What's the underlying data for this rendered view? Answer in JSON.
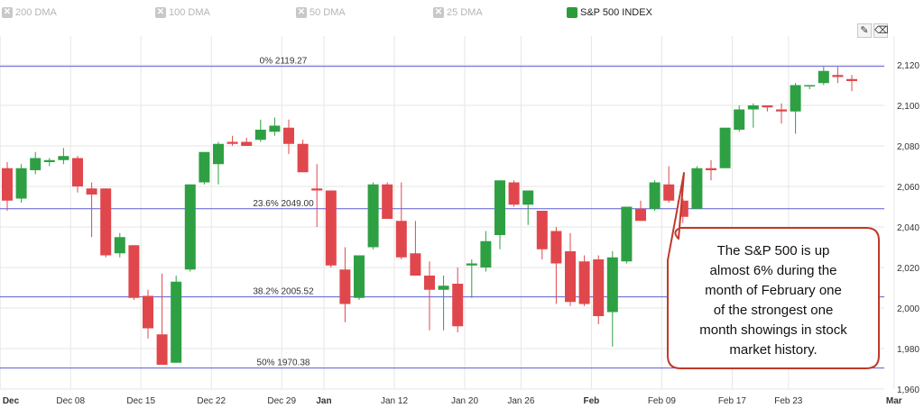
{
  "legend": [
    {
      "label": "200 DMA",
      "active": false
    },
    {
      "label": "100 DMA",
      "active": false
    },
    {
      "label": "50 DMA",
      "active": false
    },
    {
      "label": "25 DMA",
      "active": false
    },
    {
      "label": "S&P 500 INDEX",
      "active": true
    }
  ],
  "toolbar": {
    "pencil_icon": "pencil-icon",
    "eraser_icon": "eraser-icon"
  },
  "colors": {
    "up": "#2ea043",
    "down": "#e0474c",
    "fib_line": "#5b5bd6",
    "grid": "#e6e6e6",
    "callout_border": "#c0392b"
  },
  "annotation": {
    "lines": [
      "The S&P 500 is up",
      "almost 6% during the",
      "month of February one",
      "of the strongest one",
      "month showings in stock",
      "market history."
    ]
  },
  "chart_data": {
    "type": "candlestick",
    "y_axis": {
      "position": "right",
      "ylim": [
        1960,
        2128
      ],
      "ticks": [
        1960,
        1980,
        2000,
        2020,
        2040,
        2060,
        2080,
        2100,
        2120
      ],
      "tick_labels": [
        "1,960",
        "1,980",
        "2,000",
        "2,020",
        "2,040",
        "2,060",
        "2,080",
        "2,100",
        "2,120"
      ]
    },
    "x_axis": {
      "labels": [
        {
          "text": "Dec",
          "index": -0.5,
          "bold": true
        },
        {
          "text": "Dec 08",
          "index": 4.5,
          "bold": false
        },
        {
          "text": "Dec 15",
          "index": 9.5,
          "bold": false
        },
        {
          "text": "Dec 22",
          "index": 14.5,
          "bold": false
        },
        {
          "text": "Dec 29",
          "index": 19.5,
          "bold": false
        },
        {
          "text": "Jan",
          "index": 22.5,
          "bold": true
        },
        {
          "text": "Jan 12",
          "index": 27.5,
          "bold": false
        },
        {
          "text": "Jan 20",
          "index": 32.5,
          "bold": false
        },
        {
          "text": "Jan 26",
          "index": 36.5,
          "bold": false
        },
        {
          "text": "Feb",
          "index": 41.5,
          "bold": true
        },
        {
          "text": "Feb 09",
          "index": 46.5,
          "bold": false
        },
        {
          "text": "Feb 17",
          "index": 51.5,
          "bold": false
        },
        {
          "text": "Feb 23",
          "index": 55.5,
          "bold": false
        },
        {
          "text": "Mar",
          "index": 63.0,
          "bold": true
        }
      ],
      "max_index": 64
    },
    "fib_levels": [
      {
        "label": "0% 2119.27",
        "value": 2119.27
      },
      {
        "label": "23.6% 2049.00",
        "value": 2049.0
      },
      {
        "label": "38.2% 2005.52",
        "value": 2005.52
      },
      {
        "label": "50% 1970.38",
        "value": 1970.38
      }
    ],
    "series": [
      {
        "name": "S&P 500 INDEX",
        "candles": [
          [
            2069,
            2072,
            2048,
            2053
          ],
          [
            2054,
            2071,
            2052,
            2069
          ],
          [
            2068,
            2077,
            2066,
            2074
          ],
          [
            2072,
            2074,
            2070,
            2073
          ],
          [
            2073,
            2079,
            2071,
            2075
          ],
          [
            2074,
            2075,
            2057,
            2060
          ],
          [
            2059,
            2062,
            2035,
            2056
          ],
          [
            2059,
            2059,
            2025,
            2026
          ],
          [
            2027,
            2037,
            2025,
            2035
          ],
          [
            2031,
            2031,
            2004,
            2005
          ],
          [
            2006,
            2009,
            1985,
            1990
          ],
          [
            1987,
            2017,
            1972,
            1972
          ],
          [
            1973,
            2016,
            1973,
            2013
          ],
          [
            2019,
            2061,
            2018,
            2061
          ],
          [
            2062,
            2077,
            2061,
            2077
          ],
          [
            2071,
            2082,
            2061,
            2081
          ],
          [
            2082,
            2085,
            2080,
            2081
          ],
          [
            2082,
            2084,
            2080,
            2080
          ],
          [
            2083,
            2093,
            2082,
            2088
          ],
          [
            2087,
            2094,
            2085,
            2090
          ],
          [
            2089,
            2093,
            2076,
            2081
          ],
          [
            2081,
            2083,
            2068,
            2067
          ],
          [
            2059,
            2071,
            2040,
            2058
          ],
          [
            2058,
            2058,
            2020,
            2021
          ],
          [
            2019,
            2030,
            1993,
            2002
          ],
          [
            2005,
            2026,
            2004,
            2026
          ],
          [
            2030,
            2062,
            2029,
            2061
          ],
          [
            2061,
            2062,
            2044,
            2044
          ],
          [
            2043,
            2062,
            2024,
            2025
          ],
          [
            2027,
            2043,
            2017,
            2016
          ],
          [
            2016,
            2023,
            1989,
            2009
          ],
          [
            2009,
            2016,
            1989,
            2011
          ],
          [
            2012,
            2020,
            1988,
            1991
          ],
          [
            2021,
            2024,
            2005,
            2022
          ],
          [
            2020,
            2038,
            2018,
            2033
          ],
          [
            2036,
            2063,
            2029,
            2063
          ],
          [
            2062,
            2063,
            2050,
            2051
          ],
          [
            2051,
            2057,
            2041,
            2058
          ],
          [
            2048,
            2048,
            2024,
            2029
          ],
          [
            2038,
            2040,
            2002,
            2022
          ],
          [
            2028,
            2037,
            2001,
            2003
          ],
          [
            2023,
            2026,
            2001,
            2002
          ],
          [
            2024,
            2026,
            1992,
            1996
          ],
          [
            1998,
            2028,
            1981,
            2025
          ],
          [
            2023,
            2050,
            2022,
            2050
          ],
          [
            2049,
            2053,
            2043,
            2043
          ],
          [
            2049,
            2063,
            2048,
            2062
          ],
          [
            2061,
            2070,
            2052,
            2053
          ],
          [
            2053,
            2054,
            2042,
            2045
          ],
          [
            2049,
            2070,
            2049,
            2069
          ],
          [
            2069,
            2073,
            2063,
            2068
          ],
          [
            2069,
            2089,
            2069,
            2089
          ],
          [
            2088,
            2100,
            2087,
            2098
          ],
          [
            2098,
            2101,
            2089,
            2100
          ],
          [
            2100,
            2100,
            2097,
            2099
          ],
          [
            2098,
            2101,
            2091,
            2097
          ],
          [
            2097,
            2111,
            2086,
            2110
          ],
          [
            2110,
            2110,
            2108,
            2110
          ],
          [
            2111,
            2119,
            2110,
            2117
          ],
          [
            2115,
            2119,
            2111,
            2114
          ],
          [
            2113,
            2115,
            2107,
            2112
          ]
        ]
      }
    ]
  }
}
